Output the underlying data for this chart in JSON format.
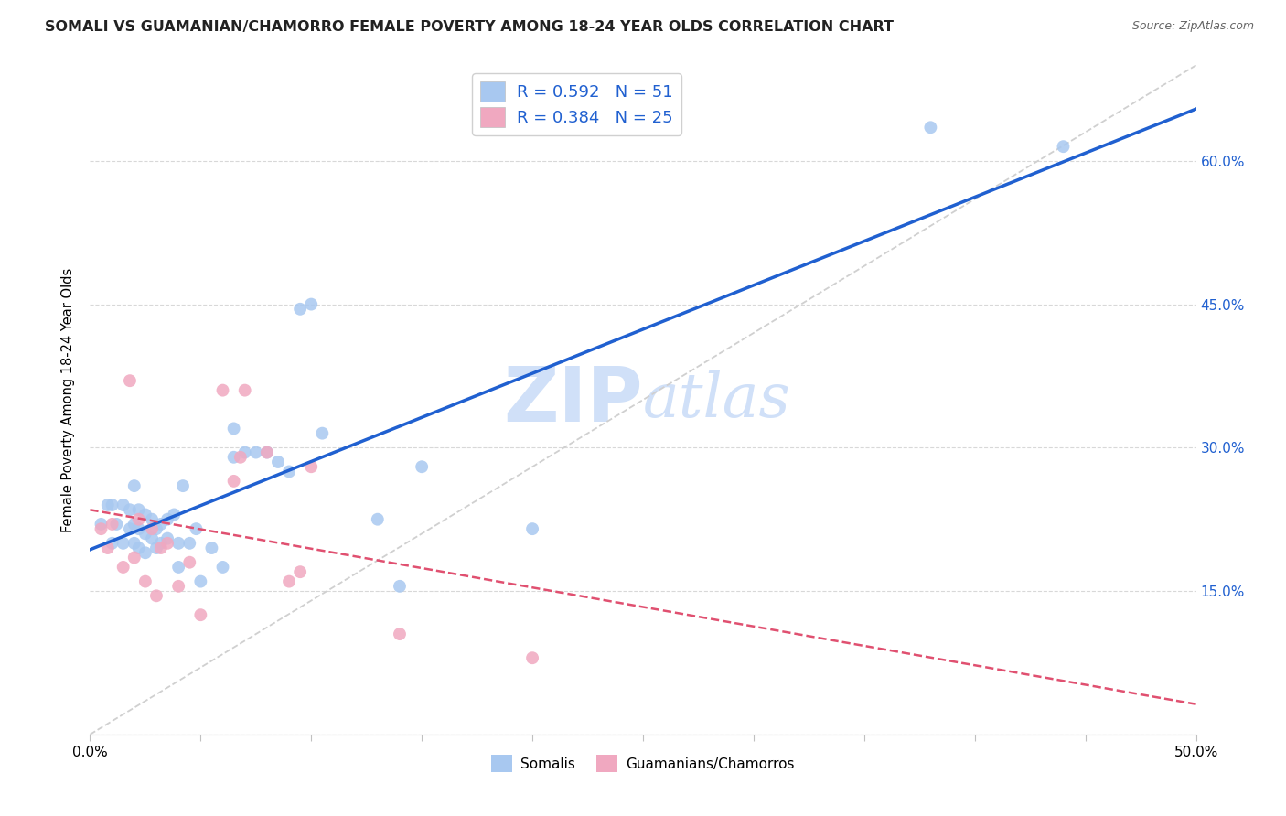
{
  "title": "SOMALI VS GUAMANIAN/CHAMORRO FEMALE POVERTY AMONG 18-24 YEAR OLDS CORRELATION CHART",
  "source": "Source: ZipAtlas.com",
  "ylabel": "Female Poverty Among 18-24 Year Olds",
  "xlim": [
    0.0,
    0.5
  ],
  "ylim": [
    0.0,
    0.7
  ],
  "xticks": [
    0.0,
    0.05,
    0.1,
    0.15,
    0.2,
    0.25,
    0.3,
    0.35,
    0.4,
    0.45,
    0.5
  ],
  "xtick_labels_show": {
    "0.0": "0.0%",
    "0.50": "50.0%"
  },
  "yticks": [
    0.0,
    0.15,
    0.3,
    0.45,
    0.6
  ],
  "ytick_labels_right": [
    "",
    "15.0%",
    "30.0%",
    "45.0%",
    "60.0%"
  ],
  "somali_R": 0.592,
  "somali_N": 51,
  "guam_R": 0.384,
  "guam_N": 25,
  "somali_color": "#a8c8f0",
  "guam_color": "#f0a8c0",
  "somali_line_color": "#2060d0",
  "guam_line_color": "#e05070",
  "ref_line_color": "#d0d0d0",
  "legend_color": "#2060d0",
  "watermark_zip": "ZIP",
  "watermark_atlas": "atlas",
  "watermark_color": "#d0e0f8",
  "somali_x": [
    0.005,
    0.008,
    0.01,
    0.01,
    0.012,
    0.015,
    0.015,
    0.018,
    0.018,
    0.02,
    0.02,
    0.02,
    0.022,
    0.022,
    0.022,
    0.025,
    0.025,
    0.025,
    0.028,
    0.028,
    0.03,
    0.03,
    0.032,
    0.032,
    0.035,
    0.035,
    0.038,
    0.04,
    0.04,
    0.042,
    0.045,
    0.048,
    0.05,
    0.055,
    0.06,
    0.065,
    0.065,
    0.07,
    0.075,
    0.08,
    0.085,
    0.09,
    0.095,
    0.1,
    0.105,
    0.13,
    0.14,
    0.15,
    0.2,
    0.38,
    0.44
  ],
  "somali_y": [
    0.22,
    0.24,
    0.2,
    0.24,
    0.22,
    0.2,
    0.24,
    0.215,
    0.235,
    0.2,
    0.22,
    0.26,
    0.195,
    0.215,
    0.235,
    0.19,
    0.21,
    0.23,
    0.205,
    0.225,
    0.195,
    0.215,
    0.2,
    0.22,
    0.205,
    0.225,
    0.23,
    0.175,
    0.2,
    0.26,
    0.2,
    0.215,
    0.16,
    0.195,
    0.175,
    0.29,
    0.32,
    0.295,
    0.295,
    0.295,
    0.285,
    0.275,
    0.445,
    0.45,
    0.315,
    0.225,
    0.155,
    0.28,
    0.215,
    0.635,
    0.615
  ],
  "guam_x": [
    0.005,
    0.008,
    0.01,
    0.015,
    0.018,
    0.02,
    0.022,
    0.025,
    0.028,
    0.03,
    0.032,
    0.035,
    0.04,
    0.045,
    0.05,
    0.06,
    0.065,
    0.068,
    0.07,
    0.08,
    0.09,
    0.095,
    0.1,
    0.14,
    0.2
  ],
  "guam_y": [
    0.215,
    0.195,
    0.22,
    0.175,
    0.37,
    0.185,
    0.225,
    0.16,
    0.215,
    0.145,
    0.195,
    0.2,
    0.155,
    0.18,
    0.125,
    0.36,
    0.265,
    0.29,
    0.36,
    0.295,
    0.16,
    0.17,
    0.28,
    0.105,
    0.08
  ]
}
